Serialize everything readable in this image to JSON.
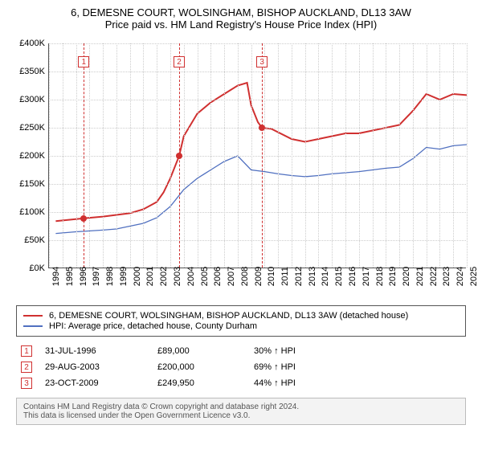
{
  "title": {
    "line1": "6, DEMESNE COURT, WOLSINGHAM, BISHOP AUCKLAND, DL13 3AW",
    "line2": "Price paid vs. HM Land Registry's House Price Index (HPI)"
  },
  "chart": {
    "type": "line",
    "x_start": 1994,
    "x_end": 2025,
    "y_min": 0,
    "y_max": 400000,
    "y_tick_step": 50000,
    "y_tick_labels": [
      "£0K",
      "£50K",
      "£100K",
      "£150K",
      "£200K",
      "£250K",
      "£300K",
      "£350K",
      "£400K"
    ],
    "x_ticks": [
      1994,
      1995,
      1996,
      1997,
      1998,
      1999,
      2000,
      2001,
      2002,
      2003,
      2004,
      2005,
      2006,
      2007,
      2008,
      2009,
      2010,
      2011,
      2012,
      2013,
      2014,
      2015,
      2016,
      2017,
      2018,
      2019,
      2020,
      2021,
      2022,
      2023,
      2024,
      2025
    ],
    "grid_color": "#cccccc",
    "background_color": "#ffffff",
    "series_property": {
      "color": "#d03030",
      "width": 2,
      "points": [
        [
          1994.5,
          84000
        ],
        [
          1996.58,
          89000
        ],
        [
          1998,
          92000
        ],
        [
          1999,
          95000
        ],
        [
          2000,
          98000
        ],
        [
          2001,
          105000
        ],
        [
          2002,
          118000
        ],
        [
          2002.5,
          135000
        ],
        [
          2003,
          160000
        ],
        [
          2003.66,
          200000
        ],
        [
          2004,
          235000
        ],
        [
          2005,
          275000
        ],
        [
          2006,
          295000
        ],
        [
          2007,
          310000
        ],
        [
          2008,
          325000
        ],
        [
          2008.7,
          330000
        ],
        [
          2009,
          290000
        ],
        [
          2009.5,
          260000
        ],
        [
          2009.81,
          249950
        ],
        [
          2010.5,
          248000
        ],
        [
          2012,
          230000
        ],
        [
          2013,
          225000
        ],
        [
          2014,
          230000
        ],
        [
          2015,
          235000
        ],
        [
          2016,
          240000
        ],
        [
          2017,
          240000
        ],
        [
          2018,
          245000
        ],
        [
          2019,
          250000
        ],
        [
          2020,
          255000
        ],
        [
          2021,
          280000
        ],
        [
          2022,
          310000
        ],
        [
          2023,
          300000
        ],
        [
          2024,
          310000
        ],
        [
          2025,
          308000
        ]
      ]
    },
    "series_hpi": {
      "color": "#5070c0",
      "width": 1.3,
      "points": [
        [
          1994.5,
          62000
        ],
        [
          1996,
          65000
        ],
        [
          1998,
          68000
        ],
        [
          1999,
          70000
        ],
        [
          2000,
          75000
        ],
        [
          2001,
          80000
        ],
        [
          2002,
          90000
        ],
        [
          2003,
          110000
        ],
        [
          2004,
          140000
        ],
        [
          2005,
          160000
        ],
        [
          2006,
          175000
        ],
        [
          2007,
          190000
        ],
        [
          2008,
          200000
        ],
        [
          2009,
          175000
        ],
        [
          2010,
          172000
        ],
        [
          2011,
          168000
        ],
        [
          2012,
          165000
        ],
        [
          2013,
          163000
        ],
        [
          2014,
          165000
        ],
        [
          2015,
          168000
        ],
        [
          2016,
          170000
        ],
        [
          2017,
          172000
        ],
        [
          2018,
          175000
        ],
        [
          2019,
          178000
        ],
        [
          2020,
          180000
        ],
        [
          2021,
          195000
        ],
        [
          2022,
          215000
        ],
        [
          2023,
          212000
        ],
        [
          2024,
          218000
        ],
        [
          2025,
          220000
        ]
      ]
    },
    "sale_markers": [
      {
        "n": "1",
        "year": 1996.58,
        "price": 89000
      },
      {
        "n": "2",
        "year": 2003.66,
        "price": 200000
      },
      {
        "n": "3",
        "year": 2009.81,
        "price": 249950
      }
    ]
  },
  "legend": {
    "items": [
      {
        "color": "#d03030",
        "label": "6, DEMESNE COURT, WOLSINGHAM, BISHOP AUCKLAND, DL13 3AW (detached house)"
      },
      {
        "color": "#5070c0",
        "label": "HPI: Average price, detached house, County Durham"
      }
    ]
  },
  "sales": [
    {
      "n": "1",
      "date": "31-JUL-1996",
      "price": "£89,000",
      "vs": "30% ↑ HPI"
    },
    {
      "n": "2",
      "date": "29-AUG-2003",
      "price": "£200,000",
      "vs": "69% ↑ HPI"
    },
    {
      "n": "3",
      "date": "23-OCT-2009",
      "price": "£249,950",
      "vs": "44% ↑ HPI"
    }
  ],
  "footer": {
    "line1": "Contains HM Land Registry data © Crown copyright and database right 2024.",
    "line2": "This data is licensed under the Open Government Licence v3.0."
  }
}
